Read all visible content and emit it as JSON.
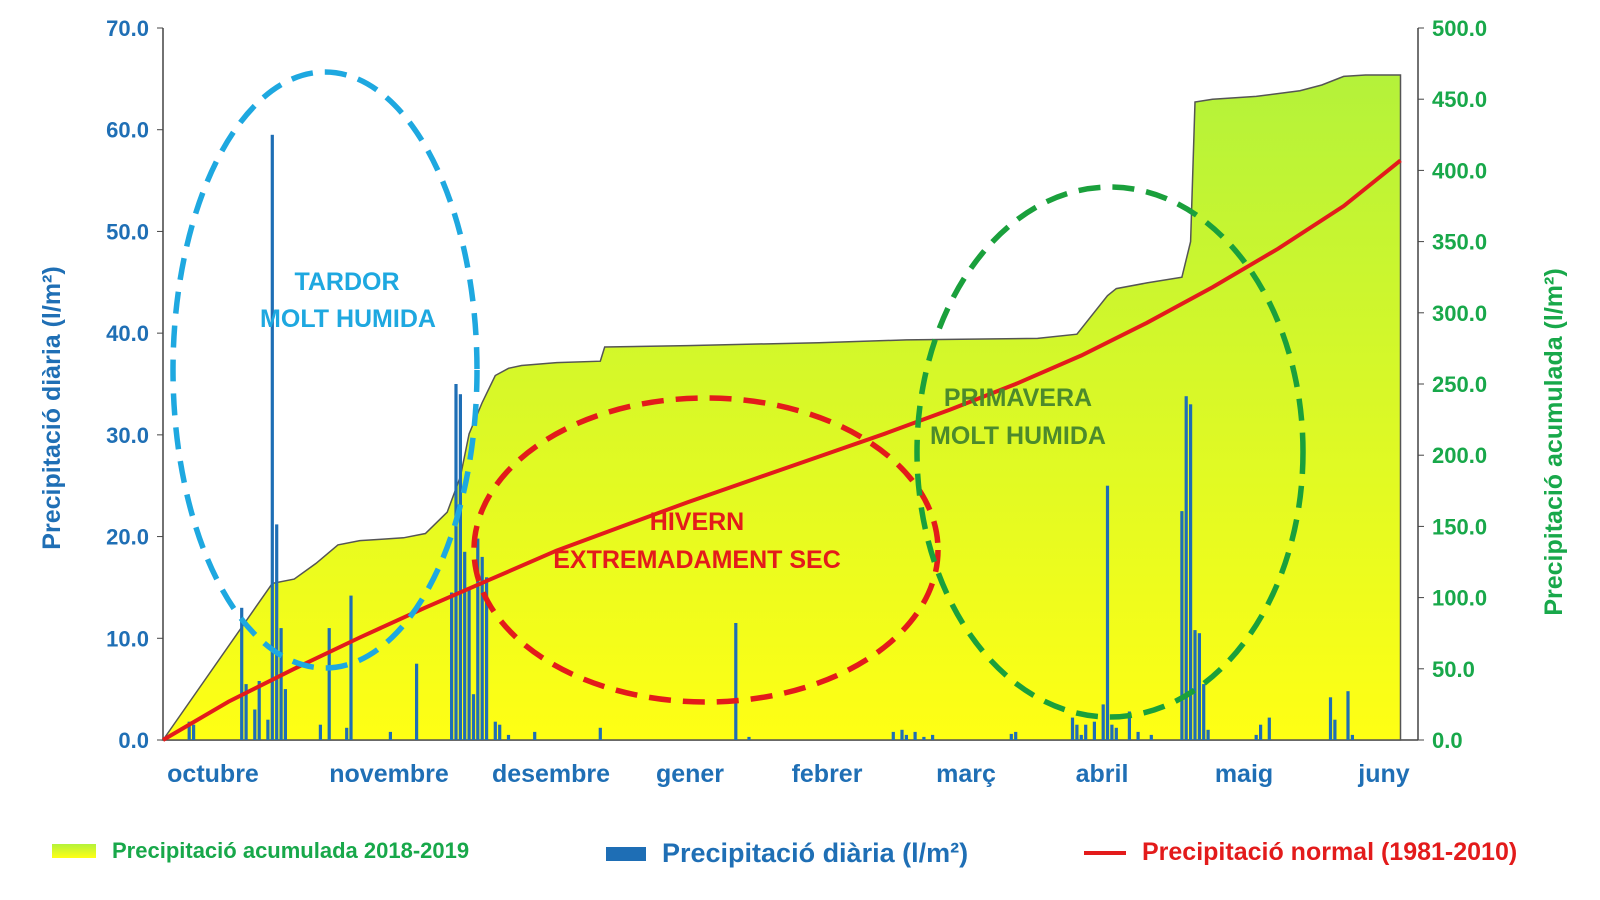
{
  "colors": {
    "left_axis": "#1f6fb5",
    "right_axis": "#18a84a",
    "bars": "#1e6eb5",
    "normal_line": "#e31b1b",
    "area_top": "#b4f23a",
    "area_bottom": "#ffff14",
    "autumn_ellipse": "#1ea8e0",
    "winter_ellipse": "#e31b1b",
    "spring_ellipse": "#1aa03c",
    "spring_text": "#4c8a2c"
  },
  "annotations": {
    "autumn_line1": "TARDOR",
    "autumn_line2": "MOLT HUMIDA",
    "winter_line1": "HIVERN",
    "winter_line2": "EXTREMADAMENT SEC",
    "spring_line1": "PRIMAVERA",
    "spring_line2": "MOLT HUMIDA"
  },
  "legend": {
    "accumulated": "Precipitació acumulada 2018-2019",
    "daily": "Precipitació diària (l/m²)",
    "normal": "Precipitació normal (1981-2010)"
  },
  "chart_data": {
    "type": "bar",
    "ylabel": "Precipitació diària (l/m²)",
    "y2label": "Precipitació acumulada (l/m²)",
    "ylim": [
      0,
      70
    ],
    "y2lim": [
      0,
      500
    ],
    "yticks": [
      "0.0",
      "10.0",
      "20.0",
      "30.0",
      "40.0",
      "50.0",
      "60.0",
      "70.0"
    ],
    "y2ticks": [
      "0.0",
      "50.0",
      "100.0",
      "150.0",
      "200.0",
      "250.0",
      "300.0",
      "350.0",
      "400.0",
      "450.0",
      "500.0"
    ],
    "months": [
      "octubre",
      "novembre",
      "desembre",
      "gener",
      "febrer",
      "març",
      "abril",
      "maig",
      "juny"
    ],
    "grid": false,
    "legend_position": "bottom",
    "series": [
      {
        "name": "Precipitació diària (l/m²)",
        "type": "bar",
        "axis": "left",
        "x": [
          6,
          7,
          18,
          19,
          21,
          22,
          24,
          25,
          26,
          27,
          28,
          36,
          38,
          42,
          43,
          52,
          58,
          66,
          67,
          68,
          69,
          70,
          71,
          72,
          73,
          74,
          76,
          77,
          79,
          85,
          100,
          131,
          134,
          167,
          169,
          170,
          172,
          174,
          176,
          194,
          195,
          208,
          209,
          210,
          211,
          213,
          215,
          216,
          217,
          218,
          221,
          223,
          226,
          233,
          234,
          235,
          236,
          237,
          238,
          239,
          250,
          251,
          253,
          267,
          268,
          271,
          272
        ],
        "values": [
          1.8,
          1.5,
          13.0,
          5.5,
          3.0,
          5.8,
          2.0,
          59.5,
          21.2,
          11.0,
          5.0,
          1.5,
          11.0,
          1.2,
          14.2,
          0.8,
          7.5,
          14.5,
          35.0,
          34.0,
          18.5,
          15.0,
          4.5,
          19.8,
          18.0,
          16.0,
          1.8,
          1.5,
          0.5,
          0.8,
          1.2,
          11.5,
          0.3,
          0.8,
          1.0,
          0.5,
          0.8,
          0.3,
          0.5,
          0.6,
          0.8,
          2.2,
          1.5,
          0.5,
          1.5,
          1.8,
          3.5,
          25.0,
          1.5,
          1.2,
          2.8,
          0.8,
          0.5,
          22.5,
          33.8,
          33.0,
          10.8,
          10.5,
          5.5,
          1.0,
          0.5,
          1.5,
          2.2,
          4.2,
          2.0,
          4.8,
          0.5
        ]
      },
      {
        "name": "Precipitació acumulada 2018-2019",
        "type": "area",
        "axis": "right",
        "x": [
          0,
          25,
          30,
          35,
          40,
          45,
          50,
          55,
          60,
          65,
          68,
          70,
          73,
          76,
          79,
          82,
          90,
          100,
          101,
          120,
          150,
          170,
          200,
          209,
          216,
          218,
          225,
          233,
          235,
          236,
          240,
          250,
          260,
          265,
          270,
          275,
          283
        ],
        "values": [
          0,
          110,
          113,
          124,
          137,
          140,
          141,
          142,
          145,
          160,
          185,
          215,
          237,
          256,
          261,
          263,
          265,
          266,
          276,
          277,
          279,
          281,
          282,
          285,
          312,
          317,
          321,
          325,
          350,
          448,
          450,
          452,
          456,
          460,
          466,
          467,
          467
        ]
      },
      {
        "name": "Precipitació normal (1981-2010)",
        "type": "line",
        "axis": "right",
        "x": [
          0,
          15,
          30,
          45,
          60,
          75,
          90,
          105,
          120,
          135,
          150,
          165,
          180,
          195,
          210,
          225,
          240,
          255,
          270,
          283
        ],
        "values": [
          0,
          27,
          50,
          72,
          93,
          113,
          133,
          150,
          167,
          183,
          199,
          215,
          232,
          250,
          270,
          293,
          318,
          345,
          375,
          407
        ]
      }
    ]
  }
}
